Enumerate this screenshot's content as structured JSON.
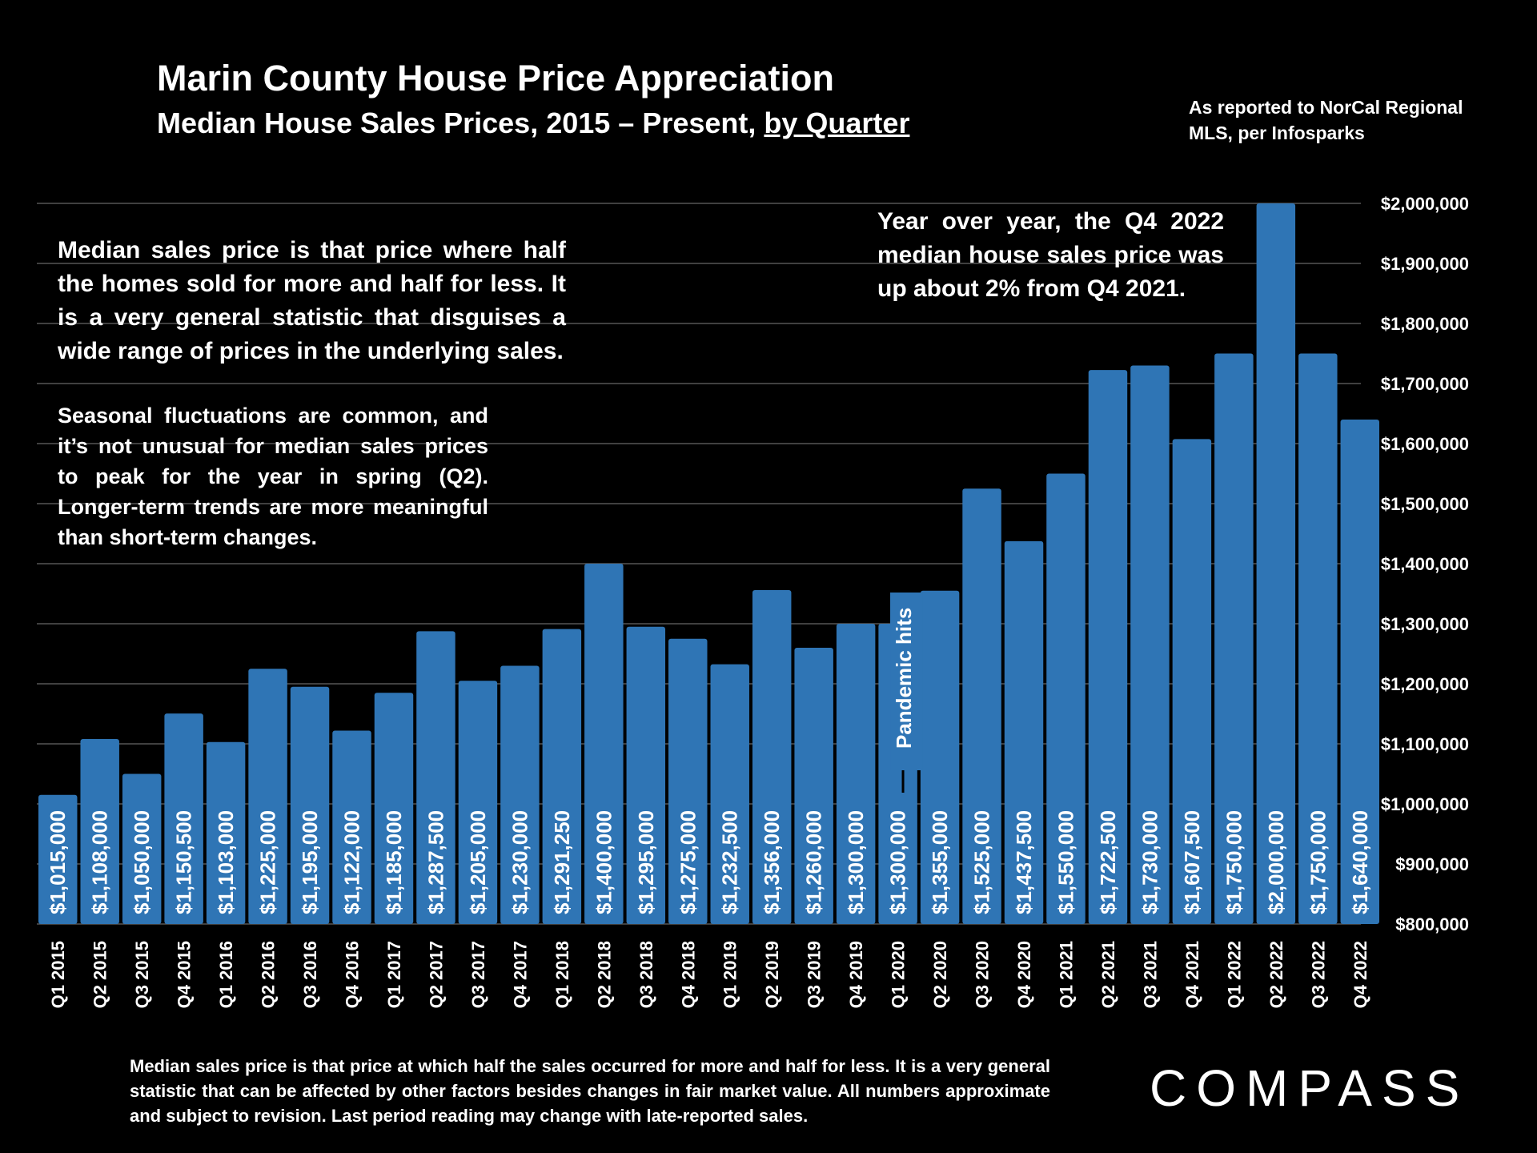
{
  "header": {
    "title": "Marin County House Price Appreciation",
    "subtitle_main": "Median House Sales Prices, 2015 – Present, ",
    "subtitle_underlined": "by Quarter",
    "source": "As reported to NorCal Regional MLS, per Infosparks"
  },
  "notes": {
    "median_definition": "Median sales price is that price where half the homes sold for more and half for less. It is a very general statistic that disguises a wide range of prices in the underlying sales.",
    "seasonal": "Seasonal fluctuations are common, and it’s not unusual for median sales prices to peak for the year in spring (Q2). Longer-term trends are more meaningful than short-term changes.",
    "yoy": "Year over year, the Q4 2022 median house sales price was up about 2% from Q4 2021."
  },
  "footnote": "Median sales price is that price at which half the sales occurred for more and half for less. It is a very general statistic that can be affected by other factors besides changes in fair market value. All numbers approximate and subject to revision. Last period reading may change with late-reported sales.",
  "logo": "COMPASS",
  "colors": {
    "bar": "#2F75B5",
    "background": "#000000",
    "grid": "#555555"
  },
  "chart_data": {
    "type": "bar",
    "title": "Marin County House Price Appreciation",
    "xlabel": "",
    "ylabel": "",
    "ylim": [
      800000,
      2000000
    ],
    "y_ticks": [
      800000,
      900000,
      1000000,
      1100000,
      1200000,
      1300000,
      1400000,
      1500000,
      1600000,
      1700000,
      1800000,
      1900000,
      2000000
    ],
    "y_tick_labels": [
      "$800,000",
      "$900,000",
      "$1,000,000",
      "$1,100,000",
      "$1,200,000",
      "$1,300,000",
      "$1,400,000",
      "$1,500,000",
      "$1,600,000",
      "$1,700,000",
      "$1,800,000",
      "$1,900,000",
      "$2,000,000"
    ],
    "y_axis_side": "right",
    "grid": true,
    "categories": [
      "Q1 2015",
      "Q2 2015",
      "Q3 2015",
      "Q4 2015",
      "Q1 2016",
      "Q2 2016",
      "Q3 2016",
      "Q4 2016",
      "Q1 2017",
      "Q2 2017",
      "Q3 2017",
      "Q4 2017",
      "Q1 2018",
      "Q2 2018",
      "Q3 2018",
      "Q4 2018",
      "Q1 2019",
      "Q2 2019",
      "Q3 2019",
      "Q4 2019",
      "Q1 2020",
      "Q2 2020",
      "Q3 2020",
      "Q4 2020",
      "Q1 2021",
      "Q2 2021",
      "Q3 2021",
      "Q4 2021",
      "Q1 2022",
      "Q2 2022",
      "Q3 2022",
      "Q4 2022"
    ],
    "values": [
      1015000,
      1108000,
      1050000,
      1150500,
      1103000,
      1225000,
      1195000,
      1122000,
      1185000,
      1287500,
      1205000,
      1230000,
      1291250,
      1400000,
      1295000,
      1275000,
      1232500,
      1356000,
      1260000,
      1300000,
      1300000,
      1355000,
      1525000,
      1437500,
      1550000,
      1722500,
      1730000,
      1607500,
      1750000,
      2000000,
      1750000,
      1640000
    ],
    "value_labels": [
      "$1,015,000",
      "$1,108,000",
      "$1,050,000",
      "$1,150,500",
      "$1,103,000",
      "$1,225,000",
      "$1,195,000",
      "$1,122,000",
      "$1,185,000",
      "$1,287,500",
      "$1,205,000",
      "$1,230,000",
      "$1,291,250",
      "$1,400,000",
      "$1,295,000",
      "$1,275,000",
      "$1,232,500",
      "$1,356,000",
      "$1,260,000",
      "$1,300,000",
      "$1,300,000",
      "$1,355,000",
      "$1,525,000",
      "$1,437,500",
      "$1,550,000",
      "$1,722,500",
      "$1,730,000",
      "$1,607,500",
      "$1,750,000",
      "$2,000,000",
      "$1,750,000",
      "$1,640,000"
    ],
    "annotations": [
      {
        "text": "Pandemic hits",
        "category": "Q1 2020"
      }
    ]
  }
}
